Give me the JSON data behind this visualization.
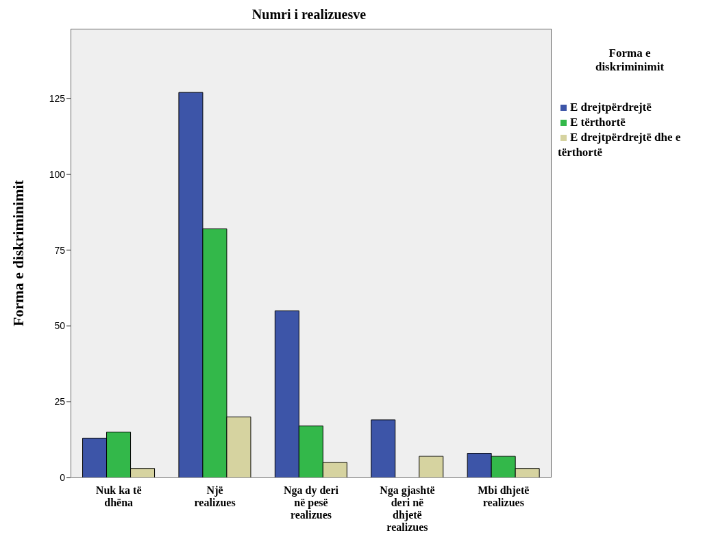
{
  "chart_data": {
    "type": "bar",
    "title": "Numri i realizuesve",
    "ylabel": "Forma e diskriminimit",
    "legend_title": "Forma e diskriminimit",
    "categories": [
      "Nuk ka të dhëna",
      "Një realizues",
      "Nga dy deri në pesë realizues",
      "Nga gjashtë deri në dhjetë realizues",
      "Mbi dhjetë realizues"
    ],
    "series": [
      {
        "name": "E drejtpërdrejtë",
        "color": "#3d55a8",
        "values": [
          13,
          127,
          55,
          19,
          8
        ]
      },
      {
        "name": "E tërthortë",
        "color": "#33b84a",
        "values": [
          15,
          82,
          17,
          null,
          7
        ]
      },
      {
        "name": "E drejtpërdrejtë dhe e tërthortë",
        "color": "#d6d3a0",
        "values": [
          3,
          20,
          5,
          7,
          3
        ]
      }
    ],
    "ylim": [
      0,
      148
    ],
    "yticks": [
      0,
      25,
      50,
      75,
      100,
      125
    ],
    "grid": false,
    "legend": "right"
  }
}
